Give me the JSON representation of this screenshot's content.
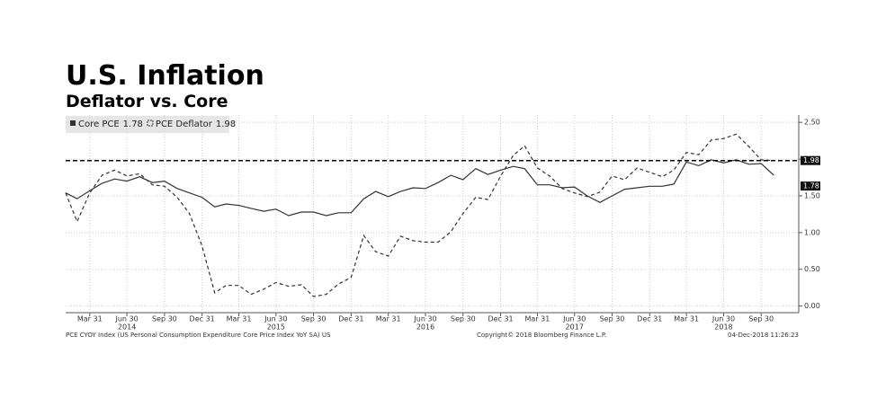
{
  "chart_data": {
    "type": "line",
    "title": "U.S. Inflation",
    "subtitle": "Deflator vs. Core",
    "x": [
      "2014-01-31",
      "2014-02-28",
      "2014-03-31",
      "2014-04-30",
      "2014-05-31",
      "2014-06-30",
      "2014-07-31",
      "2014-08-31",
      "2014-09-30",
      "2014-10-31",
      "2014-11-30",
      "2014-12-31",
      "2015-01-31",
      "2015-02-28",
      "2015-03-31",
      "2015-04-30",
      "2015-05-31",
      "2015-06-30",
      "2015-07-31",
      "2015-08-31",
      "2015-09-30",
      "2015-10-31",
      "2015-11-30",
      "2015-12-31",
      "2016-01-31",
      "2016-02-29",
      "2016-03-31",
      "2016-04-30",
      "2016-05-31",
      "2016-06-30",
      "2016-07-31",
      "2016-08-31",
      "2016-09-30",
      "2016-10-31",
      "2016-11-30",
      "2016-12-31",
      "2017-01-31",
      "2017-02-28",
      "2017-03-31",
      "2017-04-30",
      "2017-05-31",
      "2017-06-30",
      "2017-07-31",
      "2017-08-31",
      "2017-09-30",
      "2017-10-31",
      "2017-11-30",
      "2017-12-31",
      "2018-01-31",
      "2018-02-28",
      "2018-03-31",
      "2018-04-30",
      "2018-05-31",
      "2018-06-30",
      "2018-07-31",
      "2018-08-31",
      "2018-09-30",
      "2018-10-31"
    ],
    "series": [
      {
        "name": "Core PCE",
        "color": "#333333",
        "dash": false,
        "values": [
          1.54,
          1.46,
          1.57,
          1.67,
          1.73,
          1.7,
          1.76,
          1.68,
          1.7,
          1.6,
          1.54,
          1.48,
          1.35,
          1.39,
          1.37,
          1.33,
          1.29,
          1.32,
          1.23,
          1.28,
          1.28,
          1.23,
          1.27,
          1.27,
          1.46,
          1.56,
          1.49,
          1.56,
          1.61,
          1.6,
          1.68,
          1.78,
          1.72,
          1.87,
          1.79,
          1.85,
          1.9,
          1.87,
          1.65,
          1.65,
          1.61,
          1.62,
          1.5,
          1.41,
          1.5,
          1.59,
          1.61,
          1.63,
          1.63,
          1.66,
          1.96,
          1.91,
          1.99,
          1.95,
          1.99,
          1.93,
          1.94,
          1.78
        ]
      },
      {
        "name": "PCE Deflator",
        "color": "#333333",
        "dash": true,
        "values": [
          1.54,
          1.15,
          1.54,
          1.78,
          1.85,
          1.77,
          1.8,
          1.65,
          1.63,
          1.48,
          1.26,
          0.82,
          0.18,
          0.28,
          0.28,
          0.16,
          0.23,
          0.32,
          0.27,
          0.29,
          0.13,
          0.16,
          0.3,
          0.39,
          0.96,
          0.74,
          0.68,
          0.95,
          0.89,
          0.87,
          0.87,
          1.01,
          1.26,
          1.48,
          1.45,
          1.77,
          2.05,
          2.18,
          1.88,
          1.77,
          1.6,
          1.54,
          1.49,
          1.55,
          1.77,
          1.72,
          1.88,
          1.82,
          1.76,
          1.85,
          2.09,
          2.06,
          2.26,
          2.28,
          2.34,
          2.17,
          1.99,
          1.98
        ]
      }
    ],
    "xlim": [
      "2014-01-31",
      "2018-12-31"
    ],
    "xticks": [
      {
        "value": "2014-03-31",
        "label": "Mar 31"
      },
      {
        "value": "2014-06-30",
        "label": "Jun 30"
      },
      {
        "value": "2014-09-30",
        "label": "Sep 30"
      },
      {
        "value": "2014-12-31",
        "label": "Dec 31"
      },
      {
        "value": "2015-03-31",
        "label": "Mar 31"
      },
      {
        "value": "2015-06-30",
        "label": "Jun 30"
      },
      {
        "value": "2015-09-30",
        "label": "Sep 30"
      },
      {
        "value": "2015-12-31",
        "label": "Dec 31"
      },
      {
        "value": "2016-03-31",
        "label": "Mar 31"
      },
      {
        "value": "2016-06-30",
        "label": "Jun 30"
      },
      {
        "value": "2016-09-30",
        "label": "Sep 30"
      },
      {
        "value": "2016-12-31",
        "label": "Dec 31"
      },
      {
        "value": "2017-03-31",
        "label": "Mar 31"
      },
      {
        "value": "2017-06-30",
        "label": "Jun 30"
      },
      {
        "value": "2017-09-30",
        "label": "Sep 30"
      },
      {
        "value": "2017-12-31",
        "label": "Dec 31"
      },
      {
        "value": "2018-03-31",
        "label": "Mar 31"
      },
      {
        "value": "2018-06-30",
        "label": "Jun 30"
      },
      {
        "value": "2018-09-30",
        "label": "Sep 30"
      }
    ],
    "year_labels": [
      {
        "value": "2014-06-30",
        "label": "2014"
      },
      {
        "value": "2015-06-30",
        "label": "2015"
      },
      {
        "value": "2016-06-30",
        "label": "2016"
      },
      {
        "value": "2017-06-30",
        "label": "2017"
      },
      {
        "value": "2018-06-30",
        "label": "2018"
      }
    ],
    "ylim": [
      -0.09,
      2.6
    ],
    "yticks": [
      {
        "value": 0,
        "label": "0.00"
      },
      {
        "value": 0.5,
        "label": "0.50"
      },
      {
        "value": 1,
        "label": "1.00"
      },
      {
        "value": 1.5,
        "label": "1.50"
      },
      {
        "value": 2,
        "label": "2.00"
      },
      {
        "value": 2.5,
        "label": "2.50"
      }
    ],
    "grid": true,
    "footer_left": "PCE CYOY Index (US Personal Consumption Expenditure Core Price Index YoY SA) US",
    "footer_center": "Copyright© 2018 Bloomberg Finance L.P.",
    "footer_right": "04-Dec-2018 11:26:23"
  }
}
